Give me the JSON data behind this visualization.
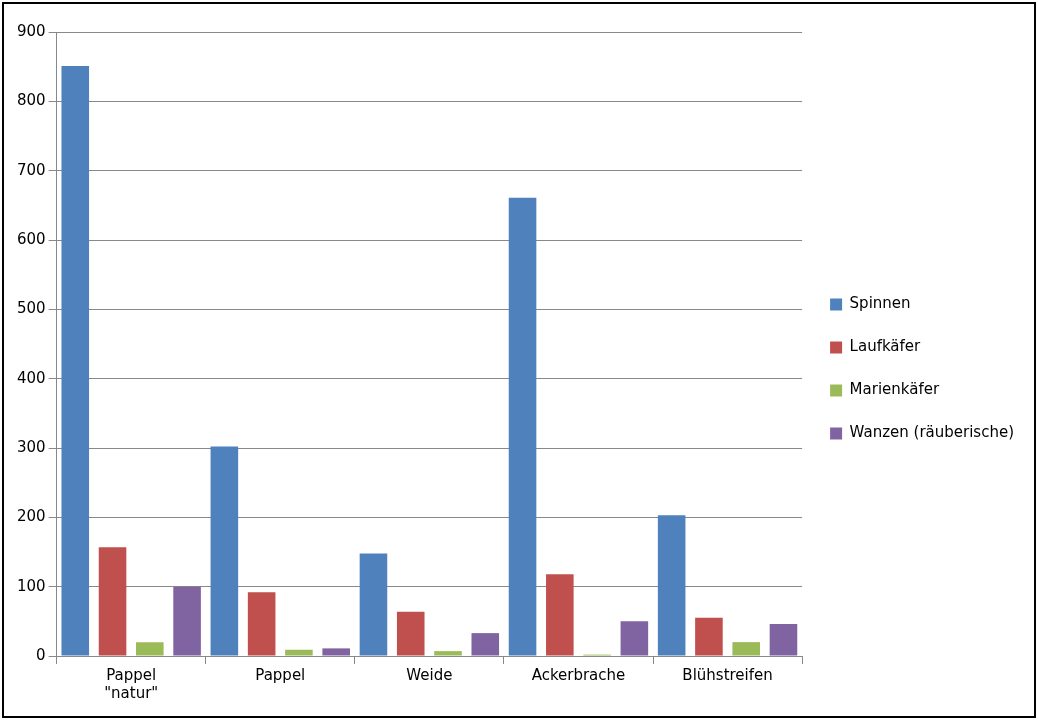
{
  "chart_data": {
    "type": "bar",
    "categories": [
      "Pappel \"natur\"",
      "Pappel",
      "Weide",
      "Ackerbrache",
      "Blühstreifen"
    ],
    "series": [
      {
        "name": "Spinnen",
        "color": "#4f81bd",
        "values": [
          851,
          302,
          148,
          661,
          203
        ]
      },
      {
        "name": "Laufkäfer",
        "color": "#c0504d",
        "values": [
          157,
          92,
          64,
          118,
          55
        ]
      },
      {
        "name": "Marienkäfer",
        "color": "#9bbb59",
        "values": [
          20,
          9,
          7,
          2,
          20
        ]
      },
      {
        "name": "Wanzen (räuberische)",
        "color": "#8064a2",
        "values": [
          100,
          11,
          33,
          50,
          46
        ]
      }
    ],
    "ylim": [
      0,
      900
    ],
    "yticks": [
      0,
      100,
      200,
      300,
      400,
      500,
      600,
      700,
      800,
      900
    ],
    "grid": "y",
    "legend": "right"
  }
}
